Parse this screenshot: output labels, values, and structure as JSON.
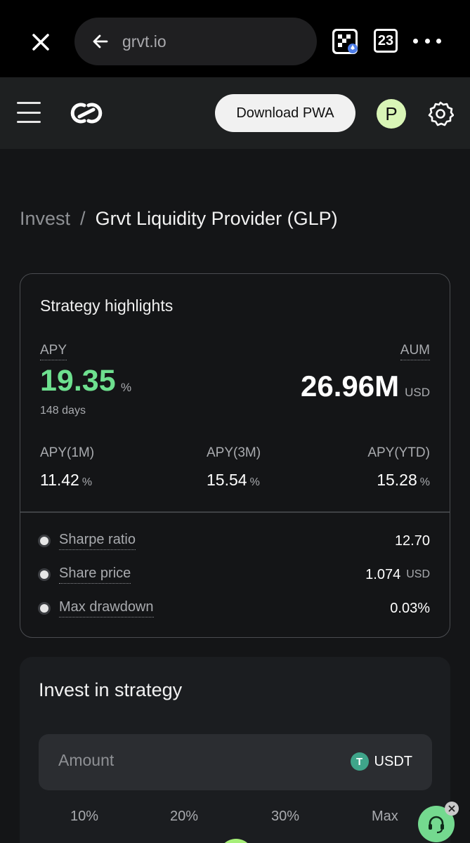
{
  "browser": {
    "url": "grvt.io",
    "tab_count": "23",
    "icons": [
      "close-icon",
      "back-arrow-icon",
      "wallet-extension-icon",
      "tabs-icon",
      "more-icon"
    ]
  },
  "header": {
    "download_pwa_label": "Download PWA",
    "avatar_letter": "P",
    "icons": [
      "menu-icon",
      "grvt-logo",
      "settings-gear-icon"
    ]
  },
  "breadcrumb": {
    "parent": "Invest",
    "separator": "/",
    "current": "Grvt Liquidity Provider (GLP)"
  },
  "highlights": {
    "title": "Strategy highlights",
    "apy": {
      "label": "APY",
      "value": "19.35",
      "unit": "%",
      "period": "148 days"
    },
    "aum": {
      "label": "AUM",
      "value": "26.96M",
      "unit": "USD"
    },
    "stats": [
      {
        "label": "APY(1M)",
        "value": "11.42",
        "unit": "%"
      },
      {
        "label": "APY(3M)",
        "value": "15.54",
        "unit": "%"
      },
      {
        "label": "APY(YTD)",
        "value": "15.28",
        "unit": "%"
      }
    ],
    "metrics": [
      {
        "label": "Sharpe ratio",
        "value": "12.70",
        "unit": ""
      },
      {
        "label": "Share price",
        "value": "1.074",
        "unit": "USD"
      },
      {
        "label": "Max drawdown",
        "value": "0.03%",
        "unit": ""
      }
    ]
  },
  "invest": {
    "title": "Invest in strategy",
    "amount_placeholder": "Amount",
    "token": "USDT",
    "token_glyph": "T",
    "percent_options": [
      "10%",
      "20%",
      "30%",
      "Max"
    ]
  },
  "colors": {
    "apy_green": "#6ee08f",
    "accent_lime": "#a6ef78",
    "background": "#141517"
  }
}
